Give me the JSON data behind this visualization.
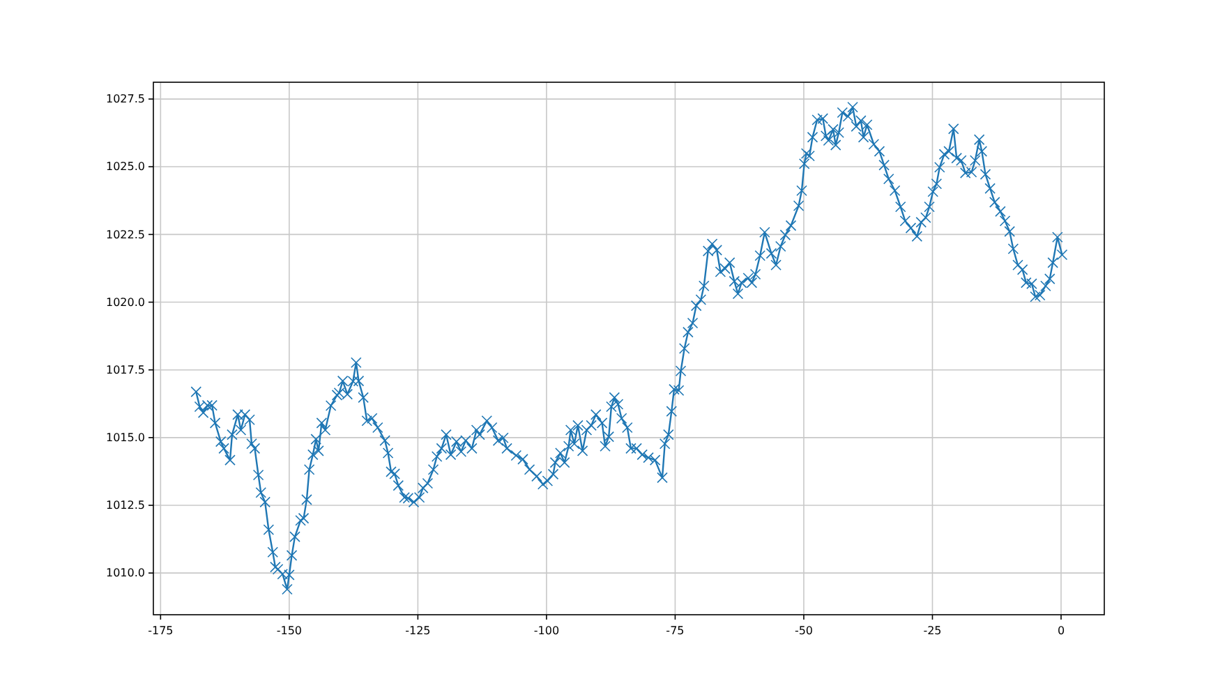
{
  "chart_data": {
    "type": "line",
    "color": "#1f77b4",
    "marker": "cross",
    "line_style": "solid",
    "grid": true,
    "xlim": [
      -176.4,
      8.4
    ],
    "ylim": [
      1008.46,
      1028.12
    ],
    "xticks": [
      -175,
      -150,
      -125,
      -100,
      -75,
      -50,
      -25,
      0
    ],
    "yticks": [
      {
        "value": 1010,
        "label": "1010.0"
      },
      {
        "value": 1012.5,
        "label": "1012.5"
      },
      {
        "value": 1015,
        "label": "1015.0"
      },
      {
        "value": 1017.5,
        "label": "1017.5"
      },
      {
        "value": 1020,
        "label": "1020.0"
      },
      {
        "value": 1022.5,
        "label": "1022.5"
      },
      {
        "value": 1025,
        "label": "1025.0"
      },
      {
        "value": 1027.5,
        "label": "1027.5"
      }
    ],
    "x": [
      -168.1,
      -167.4,
      -166.7,
      -165.9,
      -165.0,
      -164.4,
      -163.3,
      -162.7,
      -161.5,
      -161.1,
      -160.0,
      -159.4,
      -158.6,
      -157.7,
      -157.3,
      -156.7,
      -156.0,
      -155.5,
      -154.7,
      -154.0,
      -153.2,
      -152.7,
      -152.2,
      -151.3,
      -150.4,
      -150.0,
      -149.5,
      -148.9,
      -147.8,
      -147.2,
      -146.6,
      -146.1,
      -145.4,
      -144.8,
      -144.3,
      -143.7,
      -143.0,
      -141.9,
      -140.7,
      -140.3,
      -139.6,
      -138.7,
      -137.6,
      -137.0,
      -136.5,
      -135.6,
      -134.9,
      -133.9,
      -132.8,
      -131.4,
      -130.8,
      -130.2,
      -129.5,
      -128.8,
      -127.6,
      -126.9,
      -125.8,
      -124.7,
      -124.0,
      -123.1,
      -122.0,
      -121.3,
      -120.4,
      -119.5,
      -118.6,
      -117.5,
      -116.6,
      -115.7,
      -114.5,
      -113.6,
      -113.0,
      -111.6,
      -110.6,
      -109.4,
      -108.4,
      -107.7,
      -105.9,
      -104.6,
      -103.3,
      -101.9,
      -100.7,
      -99.8,
      -98.7,
      -98.3,
      -97.3,
      -96.5,
      -95.7,
      -95.3,
      -94.6,
      -93.9,
      -93.0,
      -92.2,
      -91.3,
      -90.4,
      -89.2,
      -88.6,
      -87.9,
      -87.4,
      -86.8,
      -86.1,
      -85.4,
      -84.3,
      -83.6,
      -82.5,
      -81.4,
      -80.2,
      -78.9,
      -77.5,
      -77.0,
      -76.3,
      -75.7,
      -75.2,
      -74.3,
      -73.9,
      -73.2,
      -72.5,
      -71.6,
      -70.9,
      -70.0,
      -69.4,
      -68.6,
      -67.8,
      -66.9,
      -66.2,
      -65.3,
      -64.4,
      -63.5,
      -62.8,
      -62.1,
      -60.8,
      -60.1,
      -59.4,
      -58.5,
      -57.6,
      -56.3,
      -55.4,
      -54.5,
      -53.6,
      -52.5,
      -51.0,
      -50.4,
      -49.9,
      -49.5,
      -48.9,
      -48.3,
      -47.4,
      -46.3,
      -45.7,
      -45.2,
      -44.3,
      -43.8,
      -43.2,
      -42.5,
      -41.4,
      -40.5,
      -39.8,
      -38.9,
      -38.4,
      -37.7,
      -36.4,
      -35.3,
      -34.4,
      -33.5,
      -32.3,
      -31.2,
      -30.3,
      -29.2,
      -28.0,
      -27.2,
      -26.3,
      -25.6,
      -24.9,
      -24.2,
      -23.6,
      -22.7,
      -21.8,
      -20.9,
      -20.3,
      -19.4,
      -18.6,
      -17.4,
      -16.7,
      -15.9,
      -15.4,
      -14.7,
      -13.8,
      -12.9,
      -11.8,
      -10.9,
      -10.0,
      -9.3,
      -8.4,
      -7.5,
      -6.8,
      -5.7,
      -5.0,
      -4.1,
      -3.0,
      -2.2,
      -1.6,
      -0.7,
      0.2
    ],
    "values": [
      1016.69,
      1016.14,
      1015.92,
      1016.19,
      1016.19,
      1015.54,
      1014.85,
      1014.6,
      1014.17,
      1015.11,
      1015.85,
      1015.28,
      1015.85,
      1015.66,
      1014.77,
      1014.6,
      1013.62,
      1012.97,
      1012.62,
      1011.6,
      1010.77,
      1010.22,
      1010.14,
      1009.96,
      1009.4,
      1009.93,
      1010.65,
      1011.34,
      1011.94,
      1012.02,
      1012.71,
      1013.82,
      1014.37,
      1014.94,
      1014.51,
      1015.54,
      1015.28,
      1016.18,
      1016.57,
      1016.65,
      1017.09,
      1016.6,
      1017.08,
      1017.77,
      1017.09,
      1016.48,
      1015.62,
      1015.71,
      1015.37,
      1014.89,
      1014.43,
      1013.74,
      1013.66,
      1013.23,
      1012.79,
      1012.76,
      1012.62,
      1012.79,
      1013.14,
      1013.31,
      1013.82,
      1014.3,
      1014.6,
      1015.11,
      1014.37,
      1014.85,
      1014.48,
      1014.89,
      1014.6,
      1015.28,
      1015.11,
      1015.62,
      1015.37,
      1014.89,
      1014.99,
      1014.6,
      1014.34,
      1014.2,
      1013.82,
      1013.57,
      1013.28,
      1013.4,
      1013.65,
      1014.08,
      1014.43,
      1014.08,
      1014.68,
      1015.28,
      1014.77,
      1015.45,
      1014.51,
      1015.28,
      1015.45,
      1015.85,
      1015.54,
      1014.68,
      1015.03,
      1016.14,
      1016.48,
      1016.23,
      1015.71,
      1015.37,
      1014.6,
      1014.6,
      1014.37,
      1014.26,
      1014.17,
      1013.52,
      1014.77,
      1015.11,
      1015.97,
      1016.78,
      1016.74,
      1017.46,
      1018.29,
      1018.89,
      1019.23,
      1019.87,
      1020.09,
      1020.6,
      1021.89,
      1022.15,
      1021.92,
      1021.12,
      1021.24,
      1021.46,
      1020.77,
      1020.31,
      1020.72,
      1020.89,
      1020.72,
      1021.03,
      1021.72,
      1022.58,
      1021.8,
      1021.37,
      1022.06,
      1022.48,
      1022.83,
      1023.56,
      1024.12,
      1025.11,
      1025.49,
      1025.4,
      1026.09,
      1026.73,
      1026.78,
      1026.14,
      1025.97,
      1026.38,
      1025.8,
      1026.26,
      1027.0,
      1026.86,
      1027.2,
      1026.49,
      1026.7,
      1026.09,
      1026.55,
      1025.83,
      1025.57,
      1025.06,
      1024.55,
      1024.12,
      1023.52,
      1023.0,
      1022.74,
      1022.43,
      1022.95,
      1023.12,
      1023.52,
      1024.08,
      1024.37,
      1024.98,
      1025.46,
      1025.57,
      1026.4,
      1025.32,
      1025.23,
      1024.77,
      1024.8,
      1025.23,
      1026.0,
      1025.57,
      1024.72,
      1024.2,
      1023.69,
      1023.35,
      1023.0,
      1022.61,
      1021.97,
      1021.37,
      1021.2,
      1020.72,
      1020.68,
      1020.2,
      1020.26,
      1020.6,
      1020.86,
      1021.46,
      1022.4,
      1021.75
    ]
  }
}
